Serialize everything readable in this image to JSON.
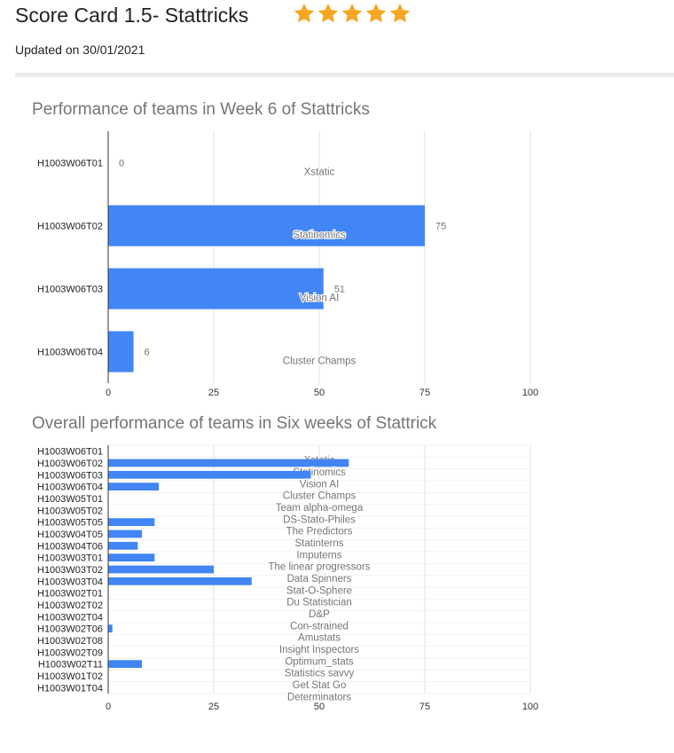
{
  "header": {
    "title": "Score Card 1.5- Stattricks",
    "rating": {
      "stars": 5,
      "max": 5,
      "color": "#f5a623"
    },
    "updated": "Updated on 30/01/2021"
  },
  "colors": {
    "bar": "#4285f4",
    "grid": "#e0e0e0",
    "axis": "#333333",
    "label": "#757575"
  },
  "chart_data": [
    {
      "type": "bar",
      "orientation": "horizontal",
      "title": "Performance of teams in Week 6 of Stattricks",
      "categories": [
        "H1003W06T01",
        "H1003W06T02",
        "H1003W06T03",
        "H1003W06T04"
      ],
      "values": [
        0,
        75,
        51,
        6
      ],
      "annotations": [
        "Xstatic",
        "Statinomics",
        "Vision AI",
        "Cluster Champs"
      ],
      "xlim": [
        0,
        100
      ],
      "xticks": [
        0,
        25,
        50,
        75,
        100
      ],
      "show_values": true,
      "grid": true
    },
    {
      "type": "bar",
      "orientation": "horizontal",
      "title": "Overall performance of teams in Six weeks of Stattrick",
      "categories": [
        "H1003W06T01",
        "H1003W06T02",
        "H1003W06T03",
        "H1003W06T04",
        "H1003W05T01",
        "H1003W05T02",
        "H1003W05T05",
        "H1003W04T05",
        "H1003W04T06",
        "H1003W03T01",
        "H1003W03T02",
        "H1003W03T04",
        "H1003W02T01",
        "H1003W02T02",
        "H1003W02T04",
        "H1003W02T06",
        "H1003W02T08",
        "H1003W02T09",
        "H1003W02T11",
        "H1003W01T02",
        "H1003W01T04"
      ],
      "values": [
        0,
        57,
        48,
        12,
        0,
        0,
        11,
        8,
        7,
        11,
        25,
        34,
        0,
        0,
        0,
        1,
        0,
        0,
        8,
        0,
        0
      ],
      "annotations": [
        "Xstatic",
        "Statinomics",
        "Vision AI",
        "Cluster Champs",
        "Team alpha-omega",
        "DS-Stato-Philes",
        "The Predictors",
        "Statinterns",
        "Imputerns",
        "The linear progressors",
        "Data Spinners",
        "Stat-O-Sphere",
        "Du Statistician",
        "D&P",
        "Con-strained",
        "Amustats",
        "Insight Inspectors",
        "Optimum_stats",
        "Statistics savvy",
        "Get Stat Go",
        "Determinators"
      ],
      "xlim": [
        0,
        100
      ],
      "xticks": [
        0,
        25,
        50,
        75,
        100
      ],
      "show_values": false,
      "grid": true
    }
  ]
}
